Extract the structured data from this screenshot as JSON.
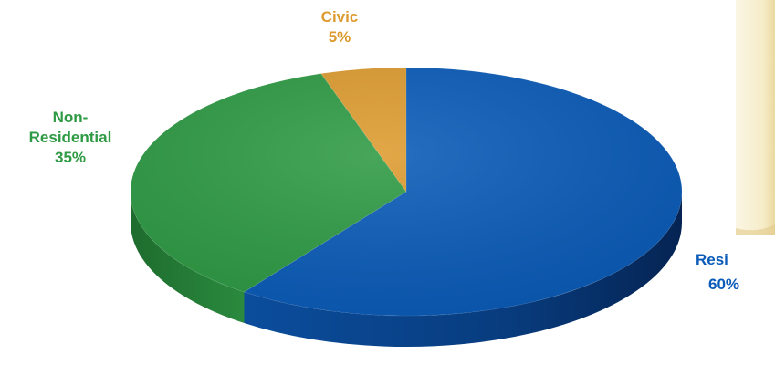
{
  "chart_data": {
    "type": "pie",
    "title": "",
    "slices": [
      {
        "label_lines": [
          "Resi"
        ],
        "percent_label": "60%",
        "value": 60,
        "color": "#0a5bb8"
      },
      {
        "label_lines": [
          "Non-",
          "Residential"
        ],
        "percent_label": "35%",
        "value": 35,
        "color": "#2e9a44"
      },
      {
        "label_lines": [
          "Civic"
        ],
        "percent_label": "5%",
        "value": 5,
        "color": "#dd9b2f"
      }
    ],
    "style": "3d-tilted",
    "legend": "none"
  }
}
